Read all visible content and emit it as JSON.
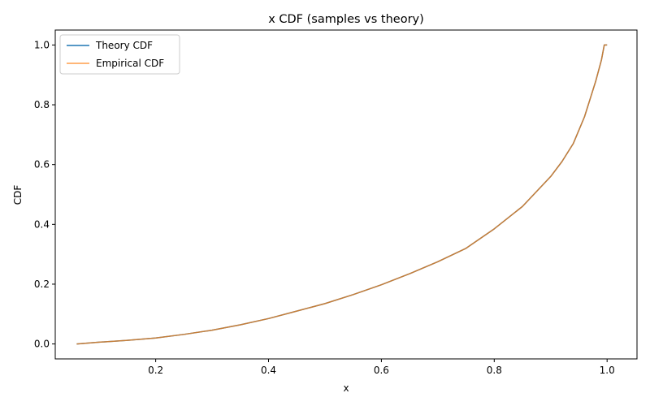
{
  "chart_data": {
    "type": "line",
    "title": "x CDF (samples vs theory)",
    "xlabel": "x",
    "ylabel": "CDF",
    "xlim": [
      0.022,
      1.053
    ],
    "ylim": [
      -0.05,
      1.05
    ],
    "xticks": [
      0.2,
      0.4,
      0.6,
      0.8,
      1.0
    ],
    "xtick_labels": [
      "0.2",
      "0.4",
      "0.6",
      "0.8",
      "1.0"
    ],
    "yticks": [
      0.0,
      0.2,
      0.4,
      0.6,
      0.8,
      1.0
    ],
    "ytick_labels": [
      "0.0",
      "0.2",
      "0.4",
      "0.6",
      "0.8",
      "1.0"
    ],
    "grid": false,
    "legend_position": "upper-left",
    "series": [
      {
        "name": "Theory CDF",
        "color": "#1f77b4",
        "x": [
          0.06,
          0.1,
          0.15,
          0.2,
          0.25,
          0.3,
          0.35,
          0.4,
          0.45,
          0.5,
          0.55,
          0.6,
          0.65,
          0.7,
          0.75,
          0.8,
          0.85,
          0.9,
          0.92,
          0.94,
          0.96,
          0.97,
          0.98,
          0.99,
          0.995,
          1.0
        ],
        "y": [
          0.0,
          0.006,
          0.012,
          0.02,
          0.032,
          0.046,
          0.064,
          0.085,
          0.11,
          0.135,
          0.165,
          0.198,
          0.235,
          0.275,
          0.32,
          0.385,
          0.46,
          0.56,
          0.61,
          0.67,
          0.76,
          0.82,
          0.88,
          0.95,
          1.0,
          1.0
        ]
      },
      {
        "name": "Empirical CDF",
        "color": "#ff7f0e",
        "x": [
          0.06,
          0.1,
          0.15,
          0.2,
          0.25,
          0.3,
          0.35,
          0.4,
          0.45,
          0.5,
          0.55,
          0.6,
          0.65,
          0.7,
          0.75,
          0.8,
          0.85,
          0.9,
          0.92,
          0.94,
          0.96,
          0.97,
          0.98,
          0.99,
          0.995,
          1.0
        ],
        "y": [
          0.0,
          0.006,
          0.012,
          0.02,
          0.032,
          0.046,
          0.064,
          0.085,
          0.11,
          0.135,
          0.165,
          0.198,
          0.235,
          0.275,
          0.32,
          0.385,
          0.46,
          0.56,
          0.61,
          0.67,
          0.76,
          0.82,
          0.88,
          0.95,
          1.0,
          1.0
        ]
      }
    ]
  }
}
